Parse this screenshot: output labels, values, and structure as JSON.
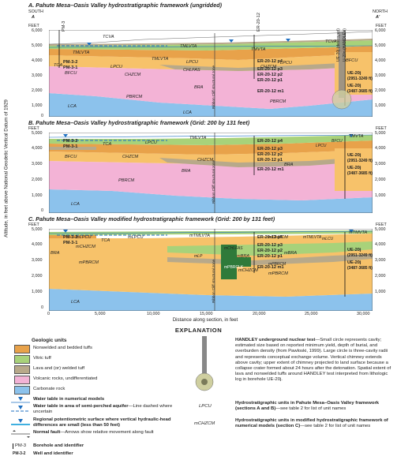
{
  "panel_a": {
    "title": "A.  Pahute Mesa–Oasis Valley hydrostratigraphic framework (ungridded)",
    "south": "SOUTH",
    "south_letter": "A",
    "north": "NORTH",
    "north_letter": "A'",
    "feet": "FEET",
    "y_ticks": [
      "6,000",
      "5,000",
      "4,000",
      "3,000",
      "2,000",
      "1,000",
      "0"
    ],
    "units": {
      "tcva": "TCVA",
      "tmlvta_top": "TMLVTA",
      "tmvta": "TMVTA",
      "tmlvta_r": "TMLVTA",
      "tca": "TCA",
      "lpcu": "LPCU",
      "bfcu": "BFCU",
      "lpcu2": "LPCU",
      "chzcm": "CHZCM",
      "chlfas": "CHLFAS",
      "chzcm2": "CHZCM",
      "lpcu3": "LPCU",
      "bfcu2": "BFCU",
      "bra": "BRA",
      "pbrcm": "PBRCM",
      "pbrcm2": "PBRCM",
      "lca": "LCA",
      "lca2": "LCA",
      "tmvta2": "TMVTA"
    },
    "wells": {
      "pm3": "PM-3",
      "pm3_2": "PM-3-2",
      "pm3_1": "PM-3-1",
      "er2012": "ER-20-12",
      "er20p4": "ER-20-12 p4",
      "er20p3": "ER-20-12 p3",
      "er20p2": "ER-20-12 p2",
      "er20p1": "ER-20-12 p1",
      "er20m1": "ER-20-12 m1",
      "ue20j": "UE-20j (destroyed)",
      "ue20j2": "U-20n (HANDLEY)",
      "ue20j_a": "UE-20j",
      "ue20j_a_d": "(2951-3249 ft)",
      "ue20j_b": "UE-20j",
      "ue20j_b_d": "(3487-3685 ft)"
    },
    "fault": "Ribbon Cliff structural zone"
  },
  "panel_b": {
    "title": "B.  Pahute Mesa–Oasis Valley hydrostratigraphic framework (Grid: 200 by 131 feet)",
    "feet": "FEET",
    "y_ticks": [
      "5,000",
      "4,000",
      "3,000",
      "2,000",
      "1,000",
      "0"
    ],
    "units": {
      "tmlvta": "TMLVTA",
      "tca": "TCA",
      "lpcu": "LPCU",
      "bfcu": "BFCU",
      "chzcm": "CHZCM",
      "chzcm2": "CHZCM",
      "bra": "BRA",
      "bra2": "BRA",
      "pbrcm": "PBRCM",
      "lca": "LCA",
      "tmvta": "TMVTA",
      "bfcu_r": "BFCU",
      "lpcu_r": "LPCU",
      "tmvta_r": "TMVTA"
    },
    "wells": {
      "pm3_2": "PM-3-2",
      "pm3_1": "PM-3-1",
      "p4": "ER-20-12 p4",
      "p3": "ER-20-12 p3",
      "p2": "ER-20-12 p2",
      "p1": "ER-20-12 p1",
      "m1": "ER-20-12 m1",
      "ue_a": "UE-20j",
      "ue_a_d": "(2951-3249 ft)",
      "ue_b": "UE-20j",
      "ue_b_d": "(3487-3685 ft)"
    },
    "fault": "Ribbon Cliff structural zone"
  },
  "panel_c": {
    "title": "C.  Pahute Mesa–Oasis Valley modified hydrostratigraphic framework (Grid: 200 by 131 feet)",
    "feet": "FEET",
    "y_ticks": [
      "5,000",
      "4,000",
      "3,000",
      "2,000",
      "1,000",
      "0"
    ],
    "units": {
      "mtmlvta": "mTMLVTA",
      "mlpcu": "mLPCU",
      "tca": "TCA",
      "mlpcu2": "mLPCU",
      "mchzcm": "mCHZCM",
      "bra": "BRA",
      "mpbrcm": "mPBRCM",
      "mchzcm2": "mCHZCM",
      "mchlfas": "mCHLFAS",
      "mbra": "mBRA",
      "mlp": "mLP",
      "mbra2": "mBRA",
      "mpbrcm2": "mPBRCM",
      "mpbrcm3": "mPBRCM",
      "mchzcm3": "mCHZCM",
      "mpbrclk": "mPBRCLK",
      "lca": "LCA",
      "mtmvta": "mTMVTA",
      "mlcu": "mLCU",
      "mtmlvta2": "mTMLVTA"
    },
    "wells": {
      "pm3": "PM-3",
      "pm3_2": "PM-3-2",
      "pm3_1": "PM-3-1",
      "p4": "ER-20-12 p4",
      "p3": "ER-20-12 p3",
      "p2": "ER-20-12 p2",
      "p1": "ER-20-12 p1",
      "m1": "ER-20-12 m1",
      "ue_a": "UE-20j",
      "ue_a_d": "(2951-3249 ft)",
      "ue_b": "UE-20j",
      "ue_b_d": "(3487-3685 ft)"
    },
    "fault": "Ribbon Cliff structural zone"
  },
  "axes": {
    "ylabel": "Altitude, in feet above National Geodetic Vertical Datum of 1929",
    "x_ticks": [
      "0",
      "5,000",
      "10,000",
      "15,000",
      "20,000",
      "25,000",
      "30,000"
    ],
    "xlabel": "Distance along section, in feet"
  },
  "explanation": {
    "title": "EXPLANATION",
    "geologic_head": "Geologic units",
    "units": [
      {
        "label": "Nonwelded and bedded tuffs",
        "color": "#e8a24a"
      },
      {
        "label": "Vitric tuff",
        "color": "#a8d27a"
      },
      {
        "label": "Lava and (or) welded tuff",
        "color": "#b8a98a"
      },
      {
        "label": "Volcanic rocks, undifferentiated",
        "color": "#f3b3d6"
      },
      {
        "label": "Carbonate rock",
        "color": "#8cc2ec"
      }
    ],
    "symbols": [
      {
        "label": "Water table in numerical models"
      },
      {
        "label": "Water table in area of semi-perched aquifer",
        "desc": "—Line dashed where uncertain"
      },
      {
        "label": "Regional potentiometric surface where vertical hydraulic-head differences are small (less than 50 feet)"
      },
      {
        "label": "Normal fault",
        "desc": "—Arrows show relative movement along fault"
      },
      {
        "label": "Borehole and identifier",
        "sample": "PM-3"
      },
      {
        "label": "Well and identifier",
        "sample": "PM-3-2"
      }
    ],
    "handley_title": "HANDLEY underground nuclear test",
    "handley_text": "—Small circle represents cavity; estimated size based on reported minimum yield, depth of burial, and overburden density (from Pawloski, 1999). Large circle is three-cavity radii and represents conceptual exchange volume. Vertical chimney extends above cavity; upper extent of chimney projected to land surface because a collapse crater formed about 24 hours after the detonation. Spatial extent of lava and nonwelded tuffs around HANDLEY test interpreted from lithologic log in borehole UE-20j.",
    "hsu_code": "LPCU",
    "hsu_title": "Hydrostratigraphic units in Pahute Mesa–Oasis Valley framework (sections A and B)",
    "hsu_text": "—see table 2 for list of unit names",
    "mhsu_code": "mCHZCM",
    "mhsu_title": "Hydrostratigraphic units in modified hydrostratigraphic framework of numerical models (section C)",
    "mhsu_text": "—see table 2 for list of unit names"
  },
  "colors": {
    "nonwelded": "#e8a24a",
    "vitric": "#a8d27a",
    "lava": "#b8a98a",
    "volcanic": "#f3b3d6",
    "carbonate": "#8cc2ec",
    "mod_orange": "#f7c26a",
    "dark_green": "#2f7a3a"
  }
}
